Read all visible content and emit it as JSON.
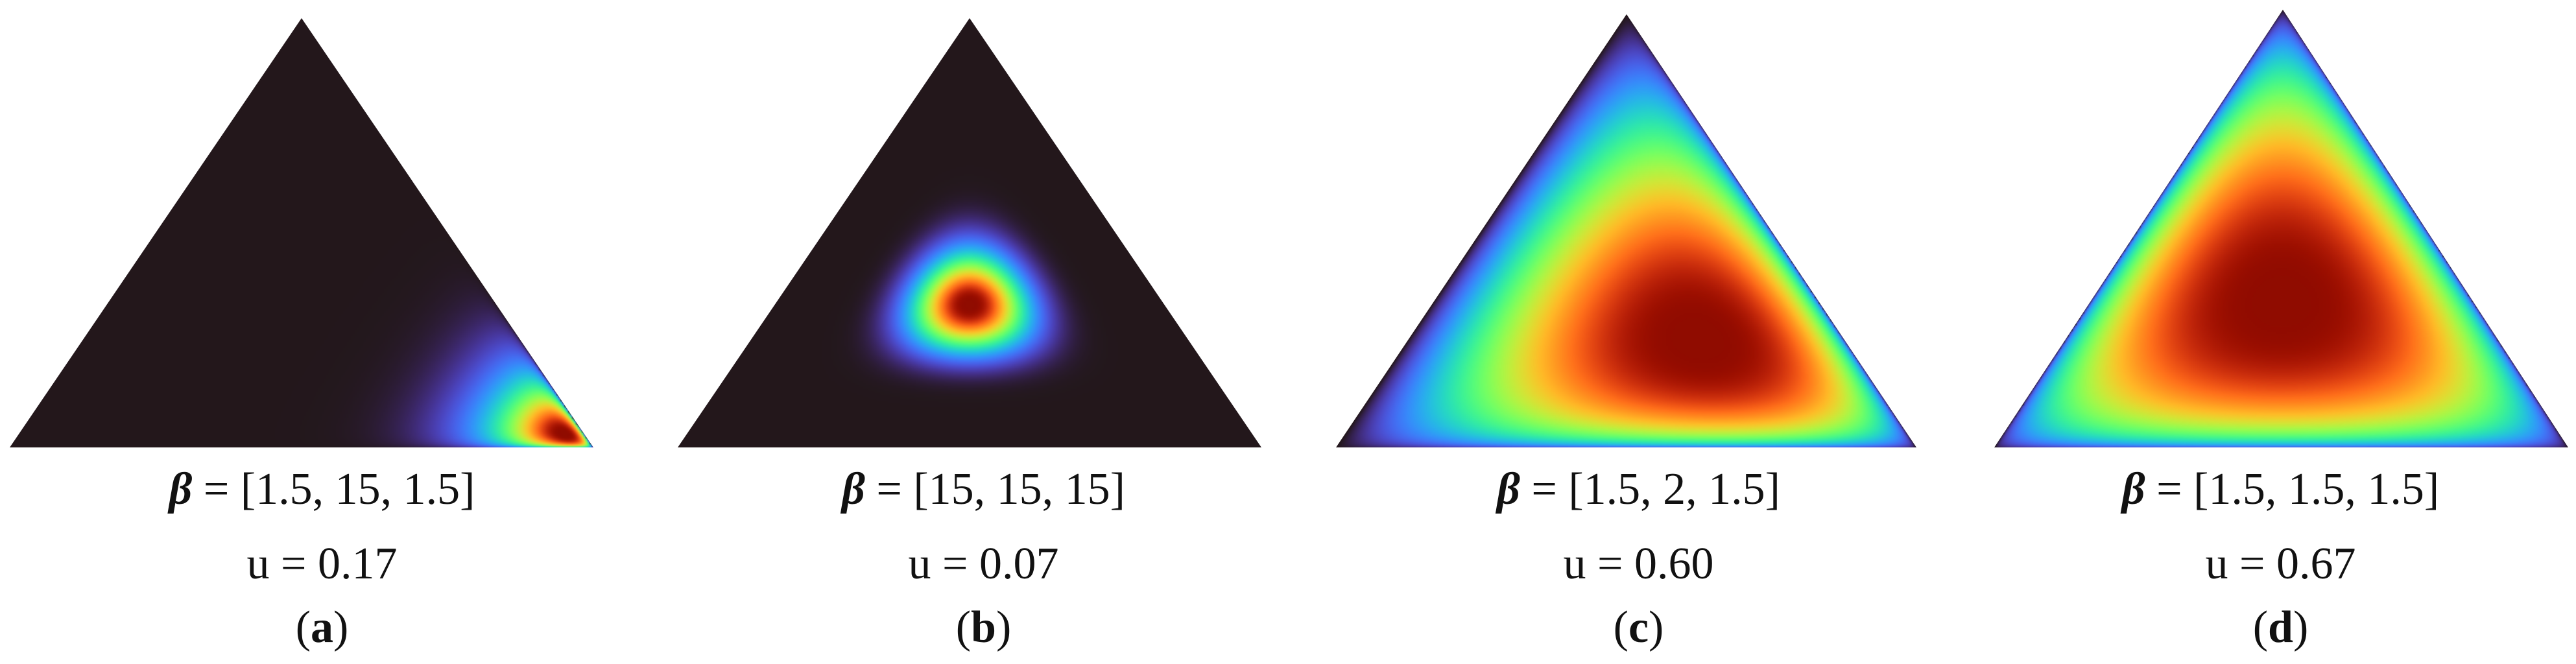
{
  "panels": [
    {
      "beta_symbol": "β",
      "beta_values": "= [1.5, 15, 1.5]",
      "u_text": "u = 0.17",
      "label": "a",
      "alpha": [
        1.5,
        15,
        1.5
      ]
    },
    {
      "beta_symbol": "β",
      "beta_values": "= [15, 15, 15]",
      "u_text": "u = 0.07",
      "label": "b",
      "alpha": [
        15,
        15,
        15
      ]
    },
    {
      "beta_symbol": "β",
      "beta_values": "= [1.5, 2, 1.5]",
      "u_text": "u = 0.60",
      "label": "c",
      "alpha": [
        1.5,
        2,
        1.5
      ]
    },
    {
      "beta_symbol": "β",
      "beta_values": "= [1.5, 1.5, 1.5]",
      "u_text": "u = 0.67",
      "label": "d",
      "alpha": [
        1.5,
        1.5,
        1.5
      ]
    }
  ],
  "colors": {
    "background_low": "#30123b",
    "colormap": "turbo"
  }
}
